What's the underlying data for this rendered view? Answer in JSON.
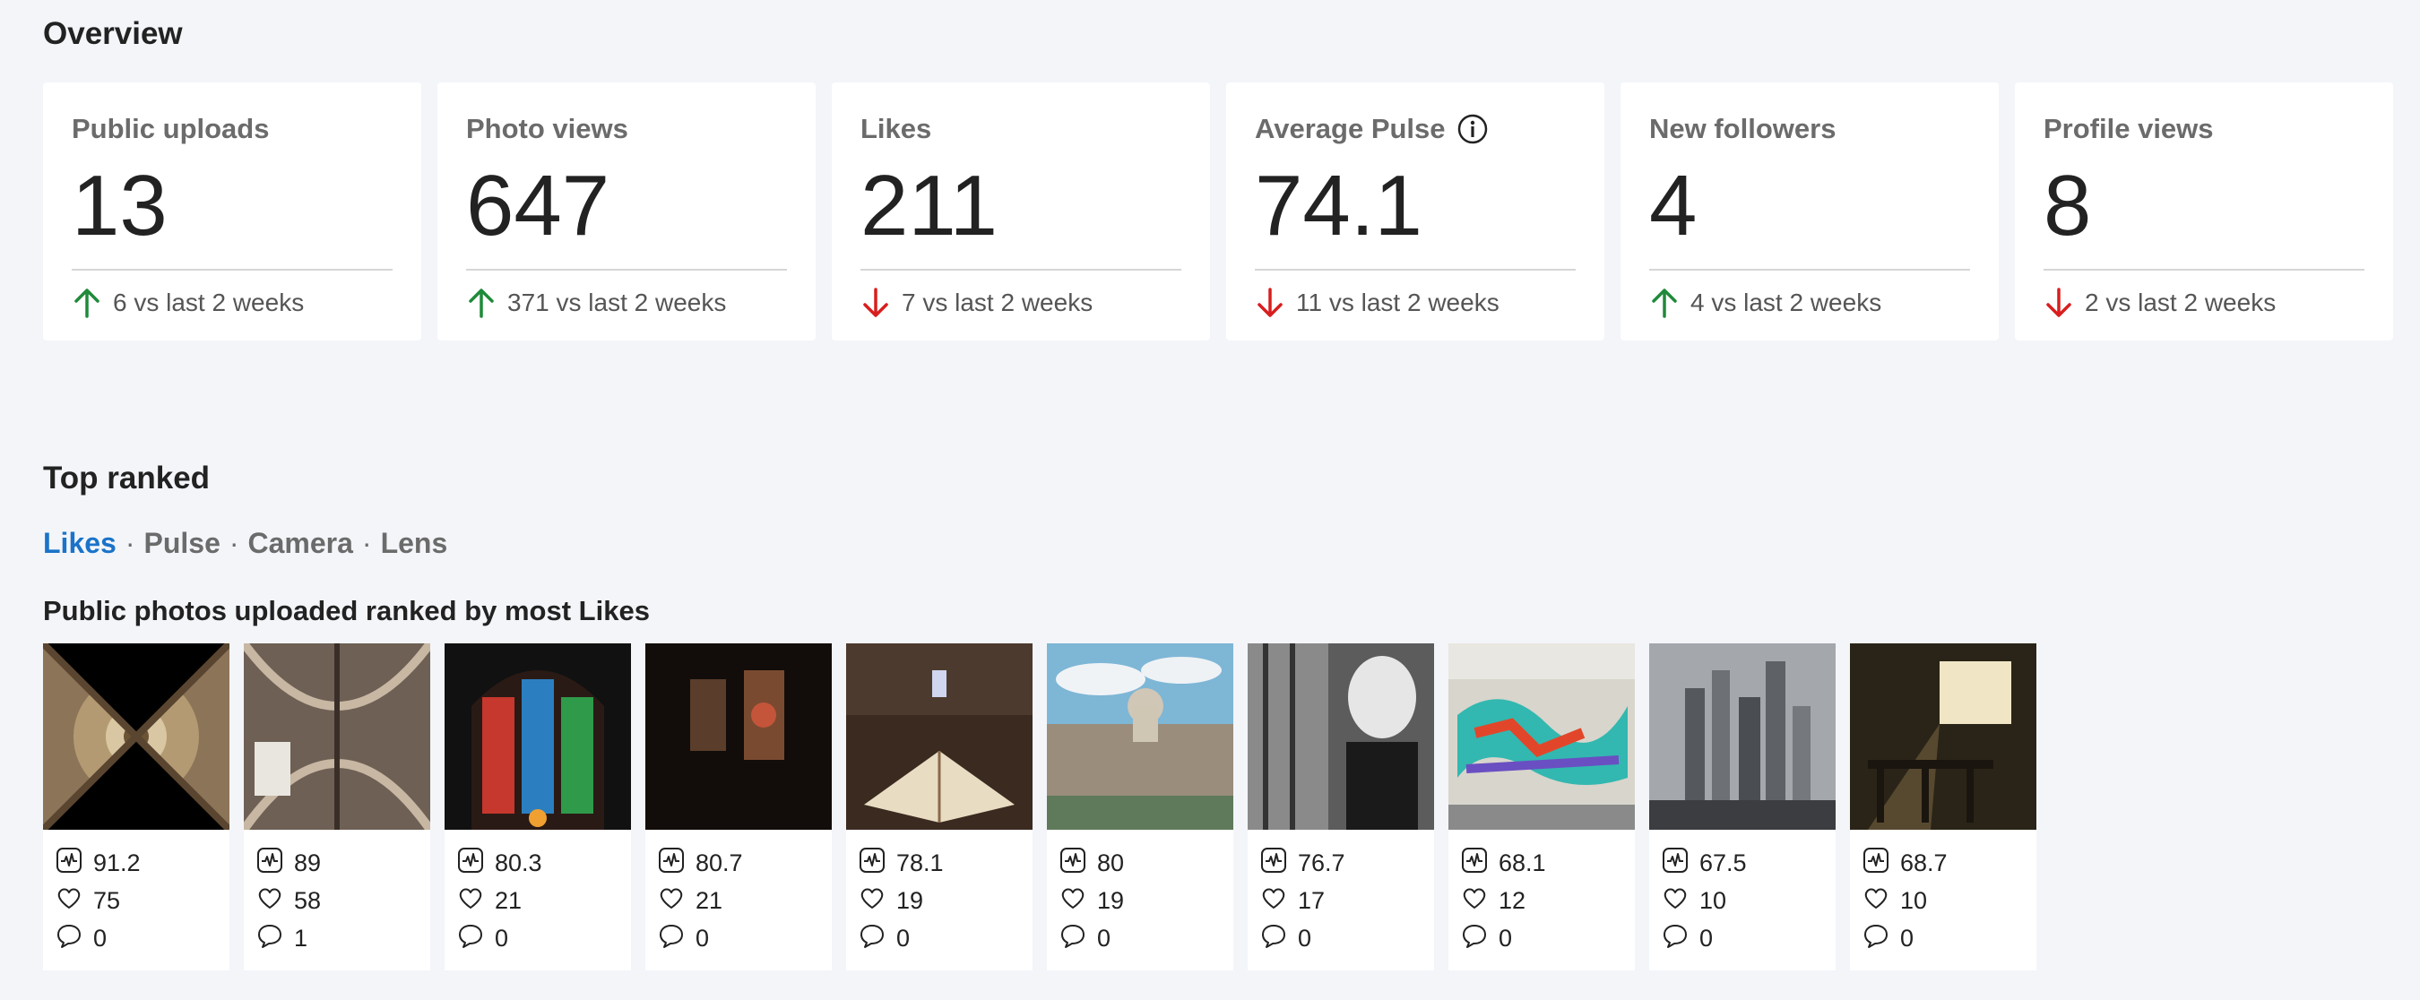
{
  "overview": {
    "title": "Overview",
    "cards": [
      {
        "label": "Public uploads",
        "value": "13",
        "delta": "6 vs last 2 weeks",
        "trend": "up"
      },
      {
        "label": "Photo views",
        "value": "647",
        "delta": "371 vs last 2 weeks",
        "trend": "up"
      },
      {
        "label": "Likes",
        "value": "211",
        "delta": "7 vs last 2 weeks",
        "trend": "down"
      },
      {
        "label": "Average Pulse",
        "value": "74.1",
        "delta": "11 vs last 2 weeks",
        "trend": "down",
        "icon": "info-icon"
      },
      {
        "label": "New followers",
        "value": "4",
        "delta": "4 vs last 2 weeks",
        "trend": "up"
      },
      {
        "label": "Profile views",
        "value": "8",
        "delta": "2 vs last 2 weeks",
        "trend": "down"
      }
    ]
  },
  "top_ranked": {
    "title": "Top ranked",
    "tabs": [
      {
        "label": "Likes",
        "active": true
      },
      {
        "label": "Pulse",
        "active": false
      },
      {
        "label": "Camera",
        "active": false
      },
      {
        "label": "Lens",
        "active": false
      }
    ],
    "tab_separator": "·",
    "subtitle": "Public photos uploaded ranked by most Likes",
    "photos": [
      {
        "subject": "cathedral-dome-ceiling",
        "pulse": "91.2",
        "likes": "75",
        "comments": "0"
      },
      {
        "subject": "gothic-vaulted-ceiling",
        "pulse": "89",
        "likes": "58",
        "comments": "1"
      },
      {
        "subject": "stained-glass-window",
        "pulse": "80.3",
        "likes": "21",
        "comments": "0"
      },
      {
        "subject": "dark-stained-glass-chapel",
        "pulse": "80.7",
        "likes": "21",
        "comments": "0"
      },
      {
        "subject": "open-bible-church-pew",
        "pulse": "78.1",
        "likes": "19",
        "comments": "0"
      },
      {
        "subject": "havana-city-skyline",
        "pulse": "80",
        "likes": "19",
        "comments": "0"
      },
      {
        "subject": "bust-statue-bw",
        "pulse": "76.7",
        "likes": "17",
        "comments": "0"
      },
      {
        "subject": "graffiti-wall",
        "pulse": "68.1",
        "likes": "12",
        "comments": "0"
      },
      {
        "subject": "skyscrapers-city",
        "pulse": "67.5",
        "likes": "10",
        "comments": "0"
      },
      {
        "subject": "sunlit-room-window",
        "pulse": "68.7",
        "likes": "10",
        "comments": "0"
      }
    ]
  },
  "colors": {
    "up": "#1f8a3a",
    "down": "#d81e1e",
    "accent": "#1a73c9",
    "background": "#f3f5f9"
  }
}
